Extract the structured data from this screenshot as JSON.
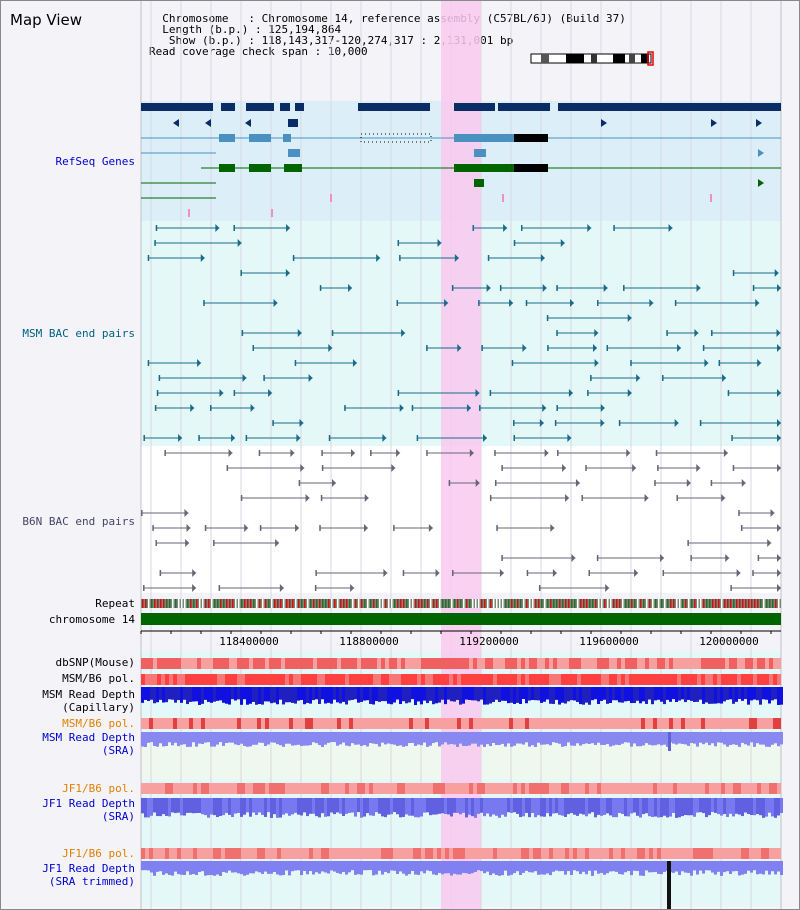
{
  "page": {
    "title": "Map View"
  },
  "header": {
    "chromosome_label": "Chromosome",
    "chromosome_value": "Chromosome 14, reference assembly (C57BL/6J) (Build 37)",
    "length_label": "Length (b.p.)",
    "length_value": "125,194,864",
    "show_label": "Show (b.p.)",
    "show_value": "118,143,317-120,274,317 : 2,131,001 bp",
    "coverage_label": "Read coverage check span",
    "coverage_value": "10,000"
  },
  "tracks": {
    "refseq": "RefSeq Genes",
    "msm_bac": "MSM BAC end pairs",
    "b6n_bac": "B6N BAC end pairs",
    "repeat": "Repeat",
    "chromosome": "chromosome 14",
    "dbsnp": "dbSNP(Mouse)",
    "msm_pol": "MSM/B6 pol.",
    "msm_depth_cap_1": "MSM Read Depth",
    "msm_depth_cap_2": "(Capillary)",
    "msm_pol2": "MSM/B6 pol.",
    "msm_depth_sra_1": "MSM Read Depth",
    "msm_depth_sra_2": "(SRA)",
    "jf1_pol": "JF1/B6 pol.",
    "jf1_depth_1": "JF1 Read Depth",
    "jf1_depth_2": "(SRA)",
    "jf1_pol2": "JF1/B6 pol.",
    "jf1_trim_1": "JF1 Read Depth",
    "jf1_trim_2": "(SRA trimmed)"
  },
  "axis": {
    "ticks": [
      "118400000",
      "118800000",
      "119200000",
      "119600000",
      "120000000"
    ]
  },
  "colors": {
    "refseq_label": "#0000cc",
    "msm_label": "#006080",
    "b6n_label": "#444466",
    "pol_label": "#e08000",
    "highlight": "#f9c9ef",
    "gene_dark": "#0a2d66",
    "gene_mid": "#4a90c0",
    "gene_green": "#006400",
    "depth_blue": "#1010e0",
    "depth_light": "#8080f0"
  },
  "ideogram": {
    "icon": "chromosome-ideogram"
  }
}
